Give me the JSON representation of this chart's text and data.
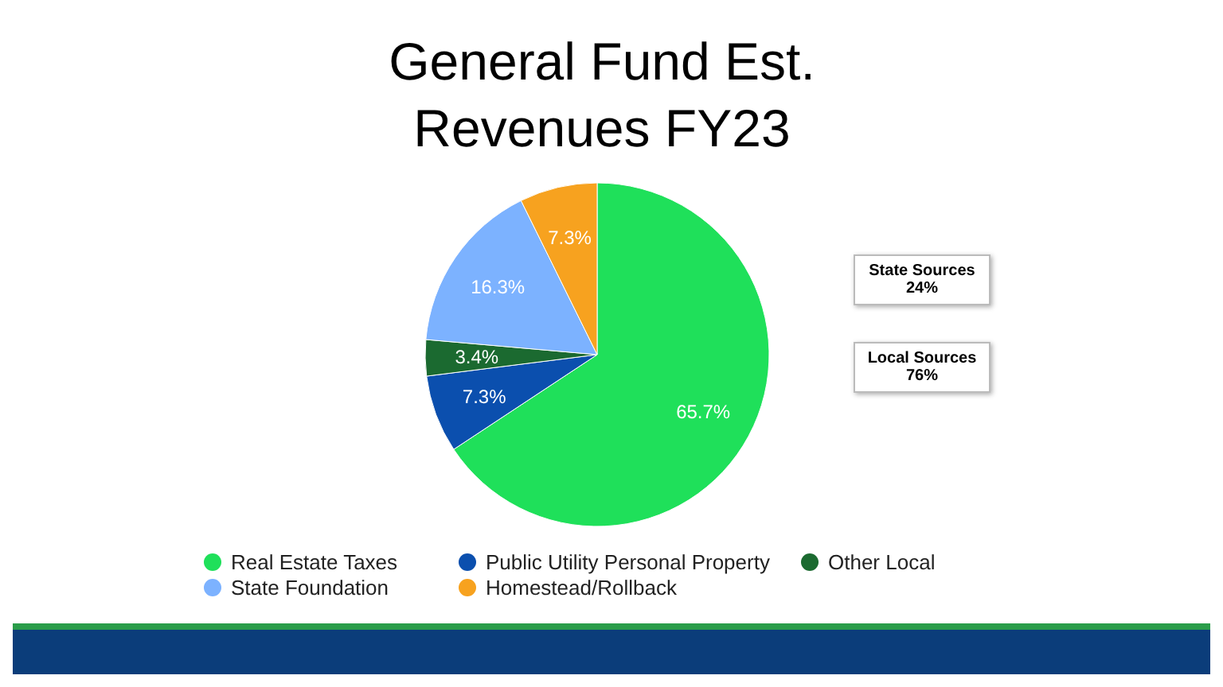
{
  "chart_data": {
    "type": "pie",
    "title": "General Fund Est. Revenues FY23",
    "categories": [
      "Real Estate Taxes",
      "Public Utility Personal Property",
      "Other Local",
      "State Foundation",
      "Homestead/Rollback"
    ],
    "values": [
      65.7,
      7.3,
      3.4,
      16.3,
      7.3
    ],
    "colors": [
      "#1fe05a",
      "#0b4fae",
      "#1b6a30",
      "#7cb2ff",
      "#f7a21f"
    ],
    "value_labels": [
      "65.7%",
      "7.3%",
      "3.4%",
      "16.3%",
      "7.3%"
    ],
    "annotations": [
      "State Sources 24%",
      "Local Sources 76%"
    ],
    "legend": "bottom"
  }
}
